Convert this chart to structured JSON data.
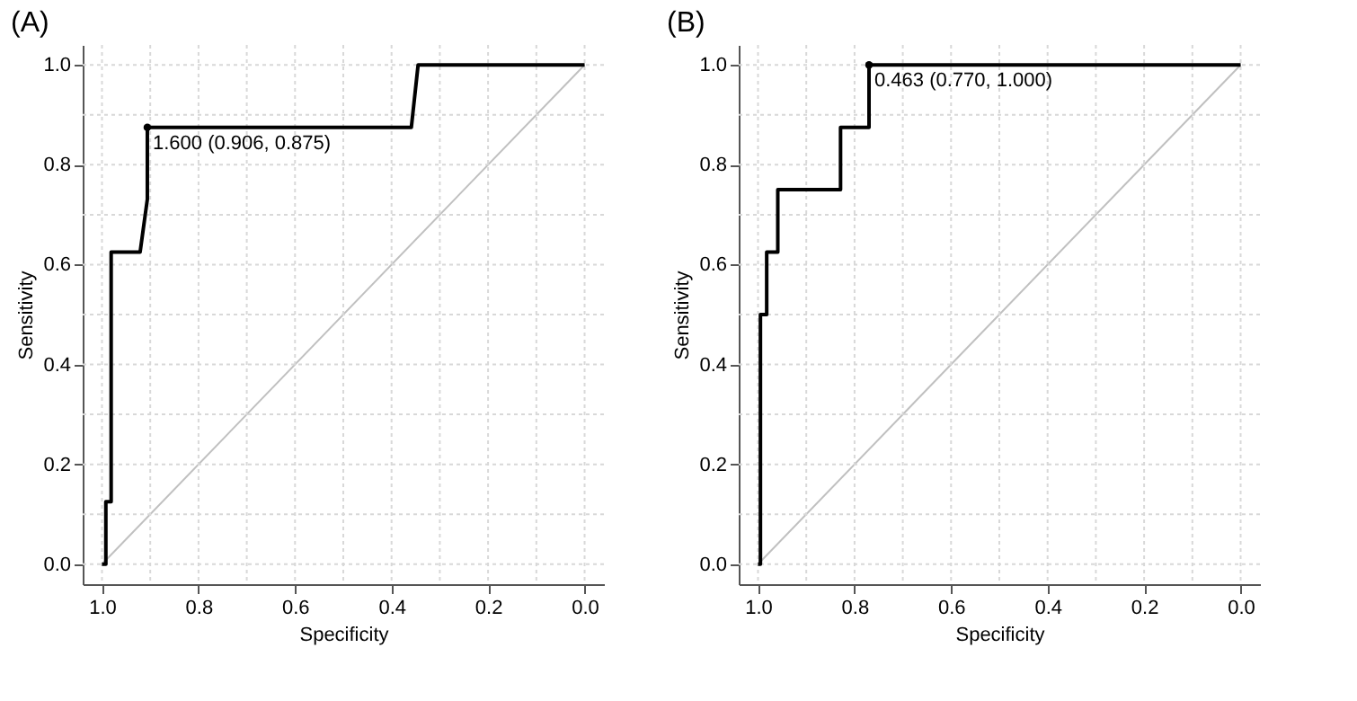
{
  "chart_data": [
    {
      "type": "line",
      "title": "(A)",
      "xlabel": "Specificity",
      "ylabel": "Sensitivity",
      "xlim": [
        1.04,
        -0.04
      ],
      "ylim": [
        -0.04,
        1.04
      ],
      "xticks": [
        {
          "value": 1.0,
          "label": "1.0"
        },
        {
          "value": 0.9,
          "label": null
        },
        {
          "value": 0.8,
          "label": "0.8"
        },
        {
          "value": 0.7,
          "label": null
        },
        {
          "value": 0.6,
          "label": "0.6"
        },
        {
          "value": 0.5,
          "label": null
        },
        {
          "value": 0.4,
          "label": "0.4"
        },
        {
          "value": 0.3,
          "label": null
        },
        {
          "value": 0.2,
          "label": "0.2"
        },
        {
          "value": 0.1,
          "label": null
        },
        {
          "value": 0,
          "label": "0.0"
        }
      ],
      "yticks": [
        {
          "value": 0,
          "label": "0.0"
        },
        {
          "value": 0.1,
          "label": null
        },
        {
          "value": 0.2,
          "label": "0.2"
        },
        {
          "value": 0.3,
          "label": null
        },
        {
          "value": 0.4,
          "label": "0.4"
        },
        {
          "value": 0.5,
          "label": null
        },
        {
          "value": 0.6,
          "label": "0.6"
        },
        {
          "value": 0.7,
          "label": null
        },
        {
          "value": 0.8,
          "label": "0.8"
        },
        {
          "value": 0.9,
          "label": null
        },
        {
          "value": 1.0,
          "label": "1.0"
        }
      ],
      "grid": true,
      "line_style": "solid",
      "series": [
        {
          "color": "#c0c0c0",
          "x": [
            1,
            0
          ],
          "values": [
            0,
            1
          ]
        },
        {
          "color": "#000000",
          "x": [
            1,
            0.992,
            0.992,
            0.981,
            0.981,
            0.921,
            0.906,
            0.906,
            0.359,
            0.345,
            0
          ],
          "values": [
            0,
            0,
            0.125,
            0.125,
            0.625,
            0.625,
            0.731,
            0.875,
            0.875,
            1,
            1
          ]
        },
        {
          "type": "scatter",
          "color": "#000000",
          "marker": "circle",
          "x": [
            0.906
          ],
          "values": [
            0.875
          ]
        }
      ],
      "annotations": [
        {
          "text": "1.600 (0.906, 0.875)",
          "x": 0.906,
          "y": 0.875
        }
      ]
    },
    {
      "type": "line",
      "title": "(B)",
      "xlabel": "Specificity",
      "ylabel": "Sensitivity",
      "xlim": [
        1.04,
        -0.04
      ],
      "ylim": [
        -0.04,
        1.04
      ],
      "xticks": [
        {
          "value": 1.0,
          "label": "1.0"
        },
        {
          "value": 0.9,
          "label": null
        },
        {
          "value": 0.8,
          "label": "0.8"
        },
        {
          "value": 0.7,
          "label": null
        },
        {
          "value": 0.6,
          "label": "0.6"
        },
        {
          "value": 0.5,
          "label": null
        },
        {
          "value": 0.4,
          "label": "0.4"
        },
        {
          "value": 0.3,
          "label": null
        },
        {
          "value": 0.2,
          "label": "0.2"
        },
        {
          "value": 0.1,
          "label": null
        },
        {
          "value": 0,
          "label": "0.0"
        }
      ],
      "yticks": [
        {
          "value": 0,
          "label": "0.0"
        },
        {
          "value": 0.1,
          "label": null
        },
        {
          "value": 0.2,
          "label": "0.2"
        },
        {
          "value": 0.3,
          "label": null
        },
        {
          "value": 0.4,
          "label": "0.4"
        },
        {
          "value": 0.5,
          "label": null
        },
        {
          "value": 0.6,
          "label": "0.6"
        },
        {
          "value": 0.7,
          "label": null
        },
        {
          "value": 0.8,
          "label": "0.8"
        },
        {
          "value": 0.9,
          "label": null
        },
        {
          "value": 1.0,
          "label": "1.0"
        }
      ],
      "grid": true,
      "line_style": "solid",
      "series": [
        {
          "color": "#c0c0c0",
          "x": [
            1,
            0
          ],
          "values": [
            0,
            1
          ]
        },
        {
          "color": "#000000",
          "x": [
            1,
            0.995,
            0.995,
            0.982,
            0.982,
            0.959,
            0.959,
            0.829,
            0.829,
            0.77,
            0.77,
            0
          ],
          "values": [
            0,
            0,
            0.5,
            0.5,
            0.625,
            0.625,
            0.75,
            0.75,
            0.875,
            0.875,
            1,
            1
          ]
        },
        {
          "type": "scatter",
          "color": "#000000",
          "marker": "circle",
          "x": [
            0.77
          ],
          "values": [
            1
          ]
        }
      ],
      "annotations": [
        {
          "text": "0.463 (0.770, 1.000)",
          "x": 0.77,
          "y": 1
        }
      ]
    }
  ]
}
